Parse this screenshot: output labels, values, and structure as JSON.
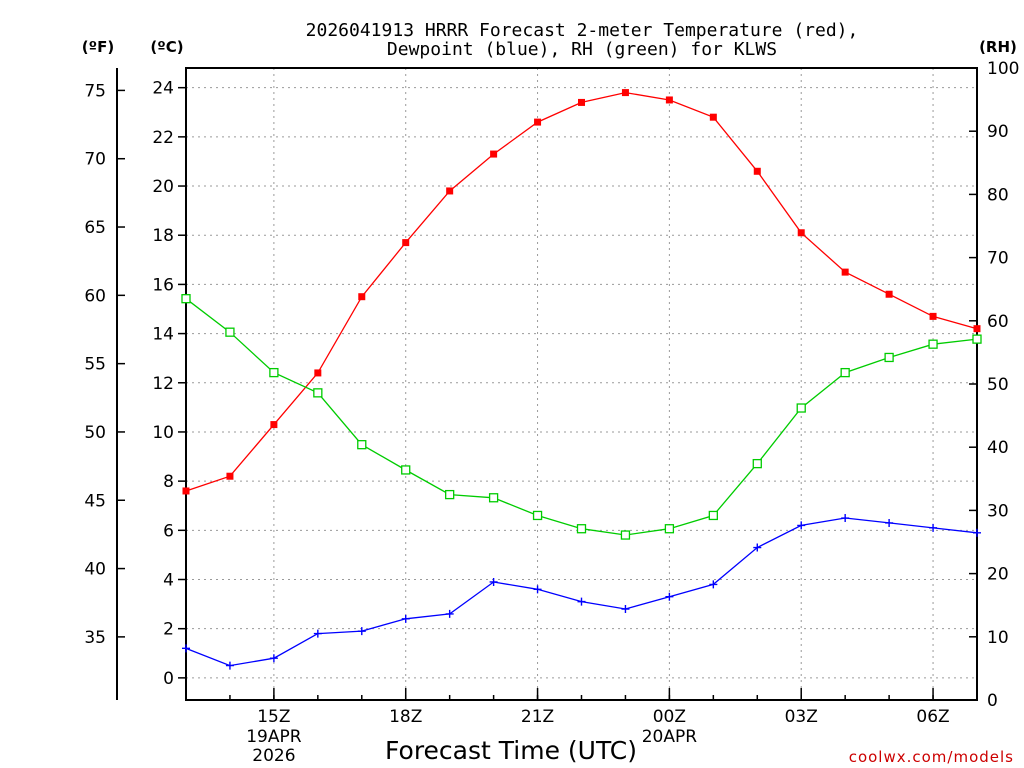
{
  "chart_data": {
    "type": "line",
    "title_line1": "2026041913 HRRR Forecast 2-meter Temperature (red),",
    "title_line2": "Dewpoint (blue), RH (green) for KLWS",
    "unit_labels": {
      "fahrenheit": "(ºF)",
      "celsius": "(ºC)",
      "rh": "(RH)"
    },
    "xlabel": "Forecast Time (UTC)",
    "watermark": "coolwx.com/models",
    "x_hours": [
      13,
      14,
      15,
      16,
      17,
      18,
      19,
      20,
      21,
      22,
      23,
      24,
      25,
      26,
      27,
      28,
      29,
      30,
      31
    ],
    "x_range": [
      13,
      31
    ],
    "x_ticks": [
      {
        "hour": 15,
        "label": "15Z",
        "sub1": "19APR",
        "sub2": "2026"
      },
      {
        "hour": 18,
        "label": "18Z",
        "sub1": "",
        "sub2": ""
      },
      {
        "hour": 21,
        "label": "21Z",
        "sub1": "",
        "sub2": ""
      },
      {
        "hour": 24,
        "label": "00Z",
        "sub1": "20APR",
        "sub2": ""
      },
      {
        "hour": 27,
        "label": "03Z",
        "sub1": "",
        "sub2": ""
      },
      {
        "hour": 30,
        "label": "06Z",
        "sub1": "",
        "sub2": ""
      }
    ],
    "celsius_axis": {
      "range": [
        -0.9,
        24.8
      ],
      "ticks": [
        "0",
        "2",
        "4",
        "6",
        "8",
        "10",
        "12",
        "14",
        "16",
        "18",
        "20",
        "22",
        "24"
      ]
    },
    "fahrenheit_axis": {
      "ticks": [
        "35",
        "40",
        "45",
        "50",
        "55",
        "60",
        "65",
        "70",
        "75"
      ]
    },
    "rh_axis": {
      "range": [
        0,
        100
      ],
      "ticks": [
        "0",
        "10",
        "20",
        "30",
        "40",
        "50",
        "60",
        "70",
        "80",
        "90",
        "100"
      ]
    },
    "series": [
      {
        "name": "Temperature",
        "units": "C",
        "axis": "celsius",
        "color": "#ff0000",
        "marker": "filled-square",
        "values": [
          7.6,
          8.2,
          10.3,
          12.4,
          15.5,
          17.7,
          19.8,
          21.3,
          22.6,
          23.4,
          23.8,
          23.5,
          22.8,
          20.6,
          18.1,
          16.5,
          15.6,
          14.7,
          14.2
        ]
      },
      {
        "name": "Dewpoint",
        "units": "C",
        "axis": "celsius",
        "color": "#0000ff",
        "marker": "plus",
        "values": [
          1.2,
          0.5,
          0.8,
          1.8,
          1.9,
          2.4,
          2.6,
          3.9,
          3.6,
          3.1,
          2.8,
          3.3,
          3.8,
          5.3,
          6.2,
          6.5,
          6.3,
          6.1,
          5.9
        ]
      },
      {
        "name": "RH",
        "units": "%",
        "axis": "rh",
        "color": "#00cc00",
        "marker": "open-square",
        "values": [
          63.5,
          58.2,
          51.8,
          48.6,
          40.4,
          36.4,
          32.5,
          32.0,
          29.2,
          27.1,
          26.1,
          27.1,
          29.2,
          37.4,
          46.2,
          51.8,
          54.2,
          56.3,
          57.1
        ]
      }
    ]
  }
}
